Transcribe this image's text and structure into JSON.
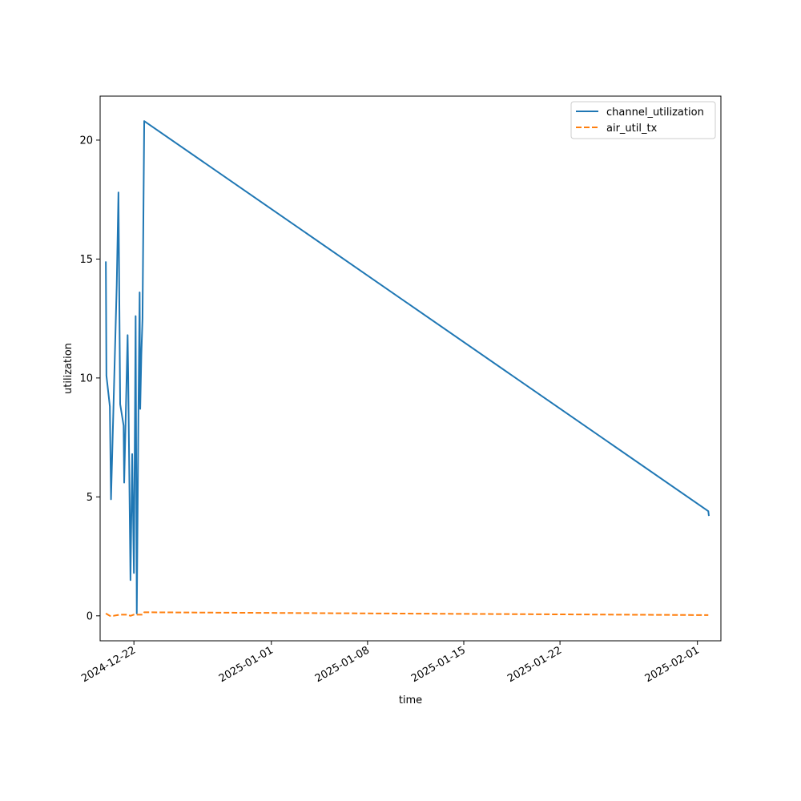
{
  "chart_data": {
    "type": "line",
    "title": "",
    "xlabel": "time",
    "ylabel": "utilization",
    "x_axis_type": "date",
    "xlim": [
      "2024-12-19T13:00",
      "2025-02-02T17:00"
    ],
    "ylim": [
      -1.05,
      21.85
    ],
    "x_ticks": [
      "2024-12-22",
      "2025-01-01",
      "2025-01-08",
      "2025-01-15",
      "2025-01-22",
      "2025-02-01"
    ],
    "y_ticks": [
      0,
      5,
      10,
      15,
      20
    ],
    "grid": false,
    "legend_position": "top-right",
    "series": [
      {
        "name": "channel_utilization",
        "color": "#1f77b4",
        "line_style": "solid",
        "points": [
          {
            "x": "2024-12-19T23:00",
            "y": 14.9
          },
          {
            "x": "2024-12-20T00:00",
            "y": 10.1
          },
          {
            "x": "2024-12-20T06:00",
            "y": 8.8
          },
          {
            "x": "2024-12-20T08:00",
            "y": 4.9
          },
          {
            "x": "2024-12-20T18:00",
            "y": 13.9
          },
          {
            "x": "2024-12-20T21:00",
            "y": 17.8
          },
          {
            "x": "2024-12-21T00:00",
            "y": 8.9
          },
          {
            "x": "2024-12-21T06:00",
            "y": 8.0
          },
          {
            "x": "2024-12-21T07:00",
            "y": 5.6
          },
          {
            "x": "2024-12-21T13:00",
            "y": 11.8
          },
          {
            "x": "2024-12-21T14:00",
            "y": 10.1
          },
          {
            "x": "2024-12-21T18:00",
            "y": 1.5
          },
          {
            "x": "2024-12-21T21:00",
            "y": 6.8
          },
          {
            "x": "2024-12-22T00:00",
            "y": 1.8
          },
          {
            "x": "2024-12-22T03:00",
            "y": 12.6
          },
          {
            "x": "2024-12-22T05:00",
            "y": 0.1
          },
          {
            "x": "2024-12-22T08:00",
            "y": 8.8
          },
          {
            "x": "2024-12-22T10:00",
            "y": 13.6
          },
          {
            "x": "2024-12-22T11:00",
            "y": 8.7
          },
          {
            "x": "2024-12-22T13:00",
            "y": 11.0
          },
          {
            "x": "2024-12-22T15:00",
            "y": 12.5
          },
          {
            "x": "2024-12-22T18:00",
            "y": 20.8
          },
          {
            "x": "2025-02-01T19:00",
            "y": 4.4
          },
          {
            "x": "2025-02-01T20:00",
            "y": 4.2
          }
        ]
      },
      {
        "name": "air_util_tx",
        "color": "#ff7f0e",
        "line_style": "dashed",
        "points": [
          {
            "x": "2024-12-19T23:00",
            "y": 0.1
          },
          {
            "x": "2024-12-20T06:00",
            "y": 0.0
          },
          {
            "x": "2024-12-20T12:00",
            "y": 0.0
          },
          {
            "x": "2024-12-21T00:00",
            "y": 0.05
          },
          {
            "x": "2024-12-21T12:00",
            "y": 0.05
          },
          {
            "x": "2024-12-21T18:00",
            "y": 0.0
          },
          {
            "x": "2024-12-22T00:00",
            "y": 0.05
          },
          {
            "x": "2024-12-22T08:00",
            "y": 0.05
          },
          {
            "x": "2024-12-22T15:00",
            "y": 0.05
          },
          {
            "x": "2024-12-22T18:00",
            "y": 0.15
          },
          {
            "x": "2025-02-01T19:00",
            "y": 0.03
          }
        ]
      }
    ]
  }
}
